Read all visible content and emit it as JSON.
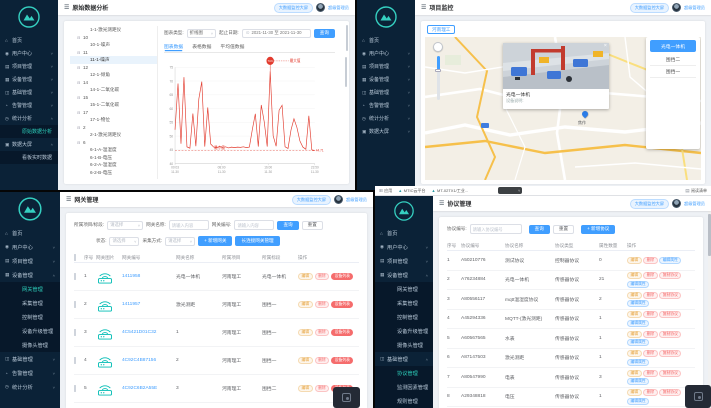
{
  "global": {
    "badge": "大数据监控大屏",
    "admin": "超级管理员",
    "icons": {
      "menu": "☰",
      "close": "×",
      "clock": "⊙",
      "caret": "˅",
      "apps": "⊞",
      "fav": "▲",
      "reading": "▤"
    }
  },
  "p1": {
    "title": "原始数据分析",
    "sidebar": {
      "items": [
        {
          "icon": "⌂",
          "label": "首页",
          "chev": "",
          "cls": ""
        },
        {
          "icon": "◉",
          "label": "用户中心",
          "chev": "˅",
          "cls": ""
        },
        {
          "icon": "▤",
          "label": "项目管理",
          "chev": "˅",
          "cls": ""
        },
        {
          "icon": "▦",
          "label": "设备管理",
          "chev": "˅",
          "cls": ""
        },
        {
          "icon": "◫",
          "label": "基础管理",
          "chev": "˅",
          "cls": ""
        },
        {
          "icon": "◔",
          "label": "告警管理",
          "chev": "˅",
          "cls": ""
        },
        {
          "icon": "◷",
          "label": "统计分析",
          "chev": "˄",
          "cls": ""
        },
        {
          "icon": "",
          "label": "原始数据分析",
          "chev": "",
          "cls": "sub active"
        },
        {
          "icon": "▣",
          "label": "数据大屏",
          "chev": "˄",
          "cls": ""
        },
        {
          "icon": "",
          "label": "看板实时数据",
          "chev": "",
          "cls": "sub"
        }
      ]
    },
    "tree": {
      "items": [
        {
          "pre": "",
          "label": "1-1-激光测距仪",
          "cls": "lvl2"
        },
        {
          "pre": "⊟",
          "label": "10",
          "cls": "lvl1"
        },
        {
          "pre": "",
          "label": "10-1-噪声",
          "cls": "lvl2"
        },
        {
          "pre": "⊟",
          "label": "11",
          "cls": "lvl1"
        },
        {
          "pre": "",
          "label": "11-1-噪声",
          "cls": "lvl2 sel"
        },
        {
          "pre": "⊟",
          "label": "12",
          "cls": "lvl1"
        },
        {
          "pre": "",
          "label": "12-1-倾角",
          "cls": "lvl2"
        },
        {
          "pre": "⊟",
          "label": "14",
          "cls": "lvl1"
        },
        {
          "pre": "",
          "label": "14-1-二氧化碳",
          "cls": "lvl2"
        },
        {
          "pre": "⊟",
          "label": "15",
          "cls": "lvl1"
        },
        {
          "pre": "",
          "label": "15-1-二氧化碳",
          "cls": "lvl2"
        },
        {
          "pre": "⊟",
          "label": "17",
          "cls": "lvl1"
        },
        {
          "pre": "",
          "label": "17-1-物位",
          "cls": "lvl2"
        },
        {
          "pre": "⊟",
          "label": "2",
          "cls": "lvl1"
        },
        {
          "pre": "",
          "label": "2-1-激光测距仪",
          "cls": "lvl2"
        },
        {
          "pre": "⊟",
          "label": "6",
          "cls": "lvl1"
        },
        {
          "pre": "",
          "label": "6-1-A-温湿度",
          "cls": "lvl2"
        },
        {
          "pre": "",
          "label": "6-1-B-电压",
          "cls": "lvl2"
        },
        {
          "pre": "",
          "label": "6-2-A-温湿度",
          "cls": "lvl2"
        },
        {
          "pre": "",
          "label": "6-2-B-电压",
          "cls": "lvl2"
        }
      ]
    },
    "filters": {
      "type_label": "图表类型:",
      "type_value": "折线图",
      "date_label": "起止日期:",
      "date_value": "2021-11-30 至 2021-11-30",
      "search": "查询"
    },
    "tabs": [
      {
        "label": "图表数据",
        "cls": "active"
      },
      {
        "label": "表格数据",
        "cls": ""
      },
      {
        "label": "平均值数据",
        "cls": ""
      }
    ],
    "chart_data": {
      "type": "line",
      "title": "",
      "xlabel": "",
      "ylabel": "",
      "ylim": [
        40,
        75
      ],
      "y_ticks": [
        40,
        45,
        50,
        55,
        60,
        65,
        70,
        75
      ],
      "x_ticks": [
        "00:03|11-30",
        "08:00|11-30",
        "16:00|11-30",
        "23:59|11-30"
      ],
      "grid": true,
      "legend": false,
      "series": [
        {
          "name": "噪声",
          "color": "#e23b2e",
          "values": [
            52.3,
            69.1,
            47.2,
            71.4,
            46.1,
            45.6,
            58.2,
            46.3,
            63.5,
            69.8,
            46.2,
            60.4,
            47.1,
            46.0,
            45.8,
            46.2,
            45.9,
            46.1,
            45.7,
            46.0,
            45.8,
            46.0,
            45.9,
            46.1,
            45.8,
            46.0,
            52.4,
            58.1,
            46.2,
            61.3,
            55.2,
            46.2,
            73.6,
            50.1,
            46.3,
            59.4,
            61.2,
            46.1,
            45.5,
            52.2,
            56.3,
            53.1,
            48.2,
            46.0,
            45.2,
            57.4,
            45.0,
            44.71
          ]
        }
      ],
      "annotations": {
        "max_label": "最大值",
        "max_value": 73.6,
        "min_label": "最小值",
        "min_value": 44.71,
        "end_value": "44.71"
      }
    }
  },
  "p2": {
    "title": "项目监控",
    "sidebar": {
      "items": [
        {
          "icon": "⌂",
          "label": "首页",
          "chev": "",
          "cls": ""
        },
        {
          "icon": "◉",
          "label": "用户中心",
          "chev": "˅",
          "cls": ""
        },
        {
          "icon": "▤",
          "label": "项目管理",
          "chev": "˅",
          "cls": ""
        },
        {
          "icon": "▦",
          "label": "设备管理",
          "chev": "˅",
          "cls": ""
        },
        {
          "icon": "◫",
          "label": "基础管理",
          "chev": "˅",
          "cls": ""
        },
        {
          "icon": "◔",
          "label": "告警管理",
          "chev": "˅",
          "cls": ""
        },
        {
          "icon": "◷",
          "label": "统计分析",
          "chev": "˅",
          "cls": ""
        },
        {
          "icon": "▣",
          "label": "数据大屏",
          "chev": "˅",
          "cls": ""
        }
      ]
    },
    "chip": "河南理工",
    "popup": {
      "caption": "光电一体机",
      "sub": "设备说明:"
    },
    "menu": {
      "items": [
        {
          "label": "光电一体机",
          "cls": "first"
        },
        {
          "label": "围挡二",
          "cls": ""
        },
        {
          "label": "围挡一",
          "cls": ""
        }
      ]
    },
    "pin_label": "焦作"
  },
  "p3": {
    "title": "网关管理",
    "sidebar": {
      "items": [
        {
          "icon": "⌂",
          "label": "首页",
          "chev": "",
          "cls": ""
        },
        {
          "icon": "◉",
          "label": "用户中心",
          "chev": "˅",
          "cls": ""
        },
        {
          "icon": "▤",
          "label": "项目管理",
          "chev": "˅",
          "cls": ""
        },
        {
          "icon": "▦",
          "label": "设备管理",
          "chev": "˄",
          "cls": ""
        },
        {
          "icon": "",
          "label": "网关管理",
          "chev": "",
          "cls": "sub active"
        },
        {
          "icon": "",
          "label": "采集管理",
          "chev": "",
          "cls": "sub"
        },
        {
          "icon": "",
          "label": "控制管理",
          "chev": "",
          "cls": "sub"
        },
        {
          "icon": "",
          "label": "设备升级管理",
          "chev": "",
          "cls": "sub"
        },
        {
          "icon": "",
          "label": "摄像头管理",
          "chev": "",
          "cls": "sub"
        },
        {
          "icon": "◫",
          "label": "基础管理",
          "chev": "˅",
          "cls": ""
        },
        {
          "icon": "◔",
          "label": "告警管理",
          "chev": "˅",
          "cls": ""
        },
        {
          "icon": "◷",
          "label": "统计分析",
          "chev": "˅",
          "cls": ""
        }
      ]
    },
    "filters": {
      "f1_label": "所属项目/标段:",
      "f1_ph": "请选择",
      "f2_label": "网关名称:",
      "f2_ph": "请输入内容",
      "f3_label": "网关编号:",
      "f3_ph": "请输入内容",
      "search": "查询",
      "reset": "重置",
      "f4_label": "状态:",
      "f4_ph": "请选择",
      "f5_label": "采集方式:",
      "f5_ph": "请选择",
      "add": "+ 新增网关",
      "longconn": "长连接网关管理"
    },
    "table": {
      "headers": [
        "序号",
        "网关图片",
        "网关编号",
        "网关名称",
        "所属项目",
        "所属标段",
        "操作"
      ],
      "ops": {
        "edit": "编辑",
        "del": "删除",
        "list": "设备列表"
      },
      "rows": [
        {
          "idx": "1",
          "code": "1411958",
          "name": "光电一体机",
          "project": "河南理工",
          "section": "光电一体机"
        },
        {
          "idx": "2",
          "code": "1411957",
          "name": "激光测距",
          "project": "河南理工",
          "section": "围挡一"
        },
        {
          "idx": "3",
          "code": "4C5421D01C32",
          "name": "1",
          "project": "河南理工",
          "section": "围挡一"
        },
        {
          "idx": "4",
          "code": "4C92C4B87156",
          "name": "2",
          "project": "河南理工",
          "section": "围挡一"
        },
        {
          "idx": "5",
          "code": "4C92C6B2A55E",
          "name": "3",
          "project": "河南理工",
          "section": "围挡二"
        }
      ]
    }
  },
  "p4": {
    "title": "协议管理",
    "bookmarks": {
      "apps": "应用",
      "b1": "MTIC云平台",
      "b2": "MT-02TX1/工业...",
      "reading": "阅读清单"
    },
    "sidebar": {
      "items": [
        {
          "icon": "⌂",
          "label": "首页",
          "chev": "",
          "cls": ""
        },
        {
          "icon": "◉",
          "label": "用户中心",
          "chev": "˅",
          "cls": ""
        },
        {
          "icon": "▤",
          "label": "项目管理",
          "chev": "˅",
          "cls": ""
        },
        {
          "icon": "▦",
          "label": "设备管理",
          "chev": "˄",
          "cls": ""
        },
        {
          "icon": "",
          "label": "网关管理",
          "chev": "",
          "cls": "sub"
        },
        {
          "icon": "",
          "label": "采集管理",
          "chev": "",
          "cls": "sub"
        },
        {
          "icon": "",
          "label": "控制管理",
          "chev": "",
          "cls": "sub"
        },
        {
          "icon": "",
          "label": "设备升级管理",
          "chev": "",
          "cls": "sub"
        },
        {
          "icon": "",
          "label": "摄像头管理",
          "chev": "",
          "cls": "sub"
        },
        {
          "icon": "◫",
          "label": "基础管理",
          "chev": "˄",
          "cls": ""
        },
        {
          "icon": "",
          "label": "协议管理",
          "chev": "",
          "cls": "sub active"
        },
        {
          "icon": "",
          "label": "监测因素管理",
          "chev": "",
          "cls": "sub"
        },
        {
          "icon": "",
          "label": "规则管理",
          "chev": "",
          "cls": "sub"
        }
      ]
    },
    "filters": {
      "label": "协议编号:",
      "ph": "请输入协议编号",
      "search": "查询",
      "reset": "重置",
      "add": "+ 新增协议"
    },
    "table": {
      "headers": [
        "序号",
        "协议编号",
        "协议名称",
        "协议类型",
        "属性数量",
        "操作"
      ],
      "ops": {
        "edit": "编辑",
        "del": "删除"
      },
      "rows": [
        {
          "idx": "1",
          "code": "A50210776",
          "name": "测试协议",
          "type": "控制器协议",
          "count": "0",
          "copy": "",
          "attr": "编辑属性"
        },
        {
          "idx": "2",
          "code": "A76234884",
          "name": "光电一体机",
          "type": "传感器协议",
          "count": "21",
          "copy": "复制协议",
          "attr": "编辑属性"
        },
        {
          "idx": "3",
          "code": "A80556117",
          "name": "mqtt温湿度协议",
          "type": "传感器协议",
          "count": "2",
          "copy": "复制协议",
          "attr": "编辑属性"
        },
        {
          "idx": "4",
          "code": "A45294336",
          "name": "MQTT-(激光测距)",
          "type": "传感器协议",
          "count": "1",
          "copy": "复制协议",
          "attr": "编辑属性"
        },
        {
          "idx": "5",
          "code": "A60567565",
          "name": "水表",
          "type": "传感器协议",
          "count": "1",
          "copy": "复制协议",
          "attr": "编辑属性"
        },
        {
          "idx": "6",
          "code": "A87147503",
          "name": "激光测距",
          "type": "传感器协议",
          "count": "1",
          "copy": "复制协议",
          "attr": "编辑属性"
        },
        {
          "idx": "7",
          "code": "A80547990",
          "name": "电表",
          "type": "传感器协议",
          "count": "3",
          "copy": "复制协议",
          "attr": "编辑属性"
        },
        {
          "idx": "8",
          "code": "A29348818",
          "name": "电压",
          "type": "传感器协议",
          "count": "1",
          "copy": "复制协议",
          "attr": "编辑属性"
        }
      ]
    }
  }
}
